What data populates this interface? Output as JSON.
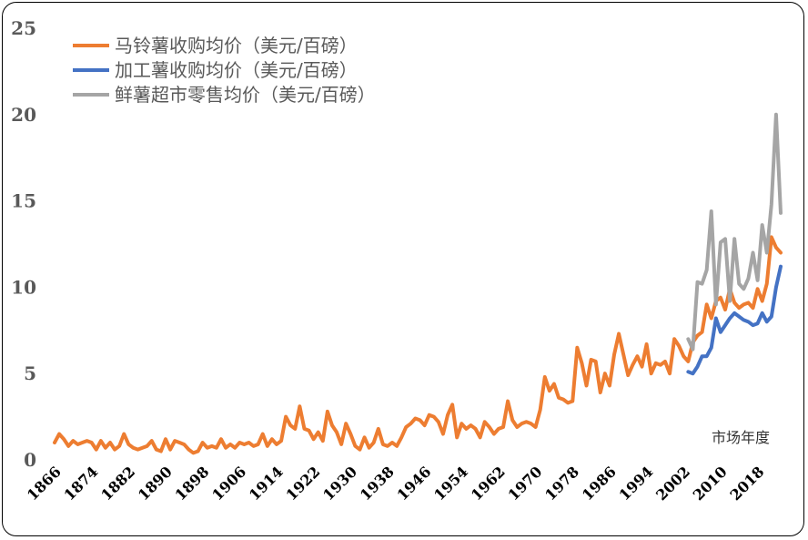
{
  "chart_data": {
    "type": "line",
    "xlabel": "市场年度",
    "ylim": [
      0,
      25
    ],
    "yticks": [
      0,
      5,
      10,
      15,
      20,
      25
    ],
    "xlim": [
      1866,
      2023
    ],
    "xticks": [
      1866,
      1874,
      1882,
      1890,
      1898,
      1906,
      1914,
      1922,
      1930,
      1938,
      1946,
      1954,
      1962,
      1970,
      1978,
      1986,
      1994,
      2002,
      2010,
      2018
    ],
    "grid": false,
    "legend_position": "top-left",
    "series": [
      {
        "name": "马铃薯收购均价（美元/百磅）",
        "color": "#ED7D31",
        "x_start": 1866,
        "values": [
          1.0,
          1.5,
          1.2,
          0.8,
          1.1,
          0.9,
          1.0,
          1.1,
          1.0,
          0.6,
          1.1,
          0.7,
          1.0,
          0.6,
          0.8,
          1.5,
          0.9,
          0.7,
          0.6,
          0.7,
          0.8,
          1.1,
          0.6,
          0.5,
          1.2,
          0.6,
          1.1,
          1.0,
          0.9,
          0.6,
          0.4,
          0.5,
          1.0,
          0.7,
          0.8,
          0.7,
          1.2,
          0.7,
          0.9,
          0.7,
          1.0,
          0.9,
          1.0,
          0.8,
          0.9,
          1.5,
          0.8,
          1.2,
          0.9,
          1.1,
          2.5,
          2.0,
          1.8,
          3.1,
          1.8,
          1.7,
          1.2,
          1.6,
          1.1,
          2.8,
          2.0,
          1.6,
          0.9,
          2.1,
          1.5,
          0.8,
          0.6,
          1.3,
          0.7,
          1.0,
          1.8,
          0.9,
          0.8,
          1.0,
          0.8,
          1.3,
          1.9,
          2.1,
          2.4,
          2.3,
          2.0,
          2.6,
          2.5,
          2.2,
          1.5,
          2.6,
          3.2,
          1.3,
          2.1,
          1.8,
          2.0,
          1.8,
          1.3,
          2.2,
          1.9,
          1.5,
          1.8,
          1.9,
          3.4,
          2.3,
          1.9,
          2.1,
          2.2,
          2.1,
          1.9,
          2.9,
          4.8,
          4.0,
          4.4,
          3.6,
          3.5,
          3.3,
          3.4,
          6.5,
          5.6,
          4.3,
          5.8,
          5.7,
          3.9,
          5.0,
          4.3,
          6.1,
          7.3,
          6.1,
          4.9,
          5.5,
          6.0,
          5.4,
          6.7,
          5.0,
          5.6,
          5.5,
          5.7,
          5.0,
          7.0,
          6.6,
          6.0,
          5.7,
          6.8,
          7.2,
          7.4,
          9.0,
          8.2,
          9.2,
          9.4,
          8.7,
          9.9,
          9.1,
          8.8,
          9.0,
          9.1,
          8.8,
          9.9,
          9.2,
          10.2,
          12.9,
          12.3,
          12.0
        ]
      },
      {
        "name": "加工薯收购均价（美元/百磅）",
        "color": "#4472C4",
        "x_start": 2003,
        "values": [
          5.1,
          5.0,
          5.4,
          6.0,
          6.0,
          6.5,
          8.2,
          7.4,
          7.8,
          8.2,
          8.5,
          8.3,
          8.1,
          8.0,
          7.8,
          7.9,
          8.5,
          8.0,
          8.3,
          10.0,
          11.2
        ]
      },
      {
        "name": "鲜薯超市零售均价（美元/百磅）",
        "color": "#A5A5A5",
        "x_start": 2003,
        "values": [
          7.0,
          6.4,
          10.3,
          10.2,
          11.0,
          14.4,
          9.0,
          12.6,
          12.8,
          9.2,
          12.8,
          10.2,
          9.9,
          10.5,
          12.0,
          10.4,
          13.6,
          12.0,
          14.8,
          20.0,
          14.3
        ]
      }
    ]
  }
}
